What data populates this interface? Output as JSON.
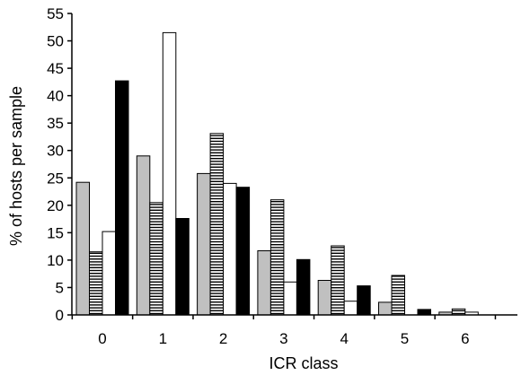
{
  "chart_data": {
    "type": "bar",
    "title": "",
    "xlabel": "ICR class",
    "ylabel": "% of hosts per sample",
    "categories": [
      "0",
      "1",
      "2",
      "3",
      "4",
      "5",
      "6"
    ],
    "ylim": [
      0,
      55
    ],
    "yticks": [
      0,
      5,
      10,
      15,
      20,
      25,
      30,
      35,
      40,
      45,
      50,
      55
    ],
    "grid": false,
    "legend": "none",
    "series": [
      {
        "fill": "#c0c0c0",
        "pattern": "solid-grey",
        "values": [
          24.2,
          29.0,
          25.8,
          11.7,
          6.3,
          2.3,
          0.5
        ]
      },
      {
        "fill": "#ffffff",
        "pattern": "horizontal-stripes",
        "values": [
          11.5,
          20.5,
          33.1,
          21.0,
          12.6,
          7.2,
          1.1
        ]
      },
      {
        "fill": "#ffffff",
        "pattern": "open",
        "values": [
          15.2,
          51.5,
          24.0,
          6.0,
          2.5,
          0.0,
          0.5
        ]
      },
      {
        "fill": "#000000",
        "pattern": "solid-black",
        "values": [
          42.7,
          17.6,
          23.3,
          10.1,
          5.3,
          1.0,
          0.0
        ]
      }
    ]
  }
}
